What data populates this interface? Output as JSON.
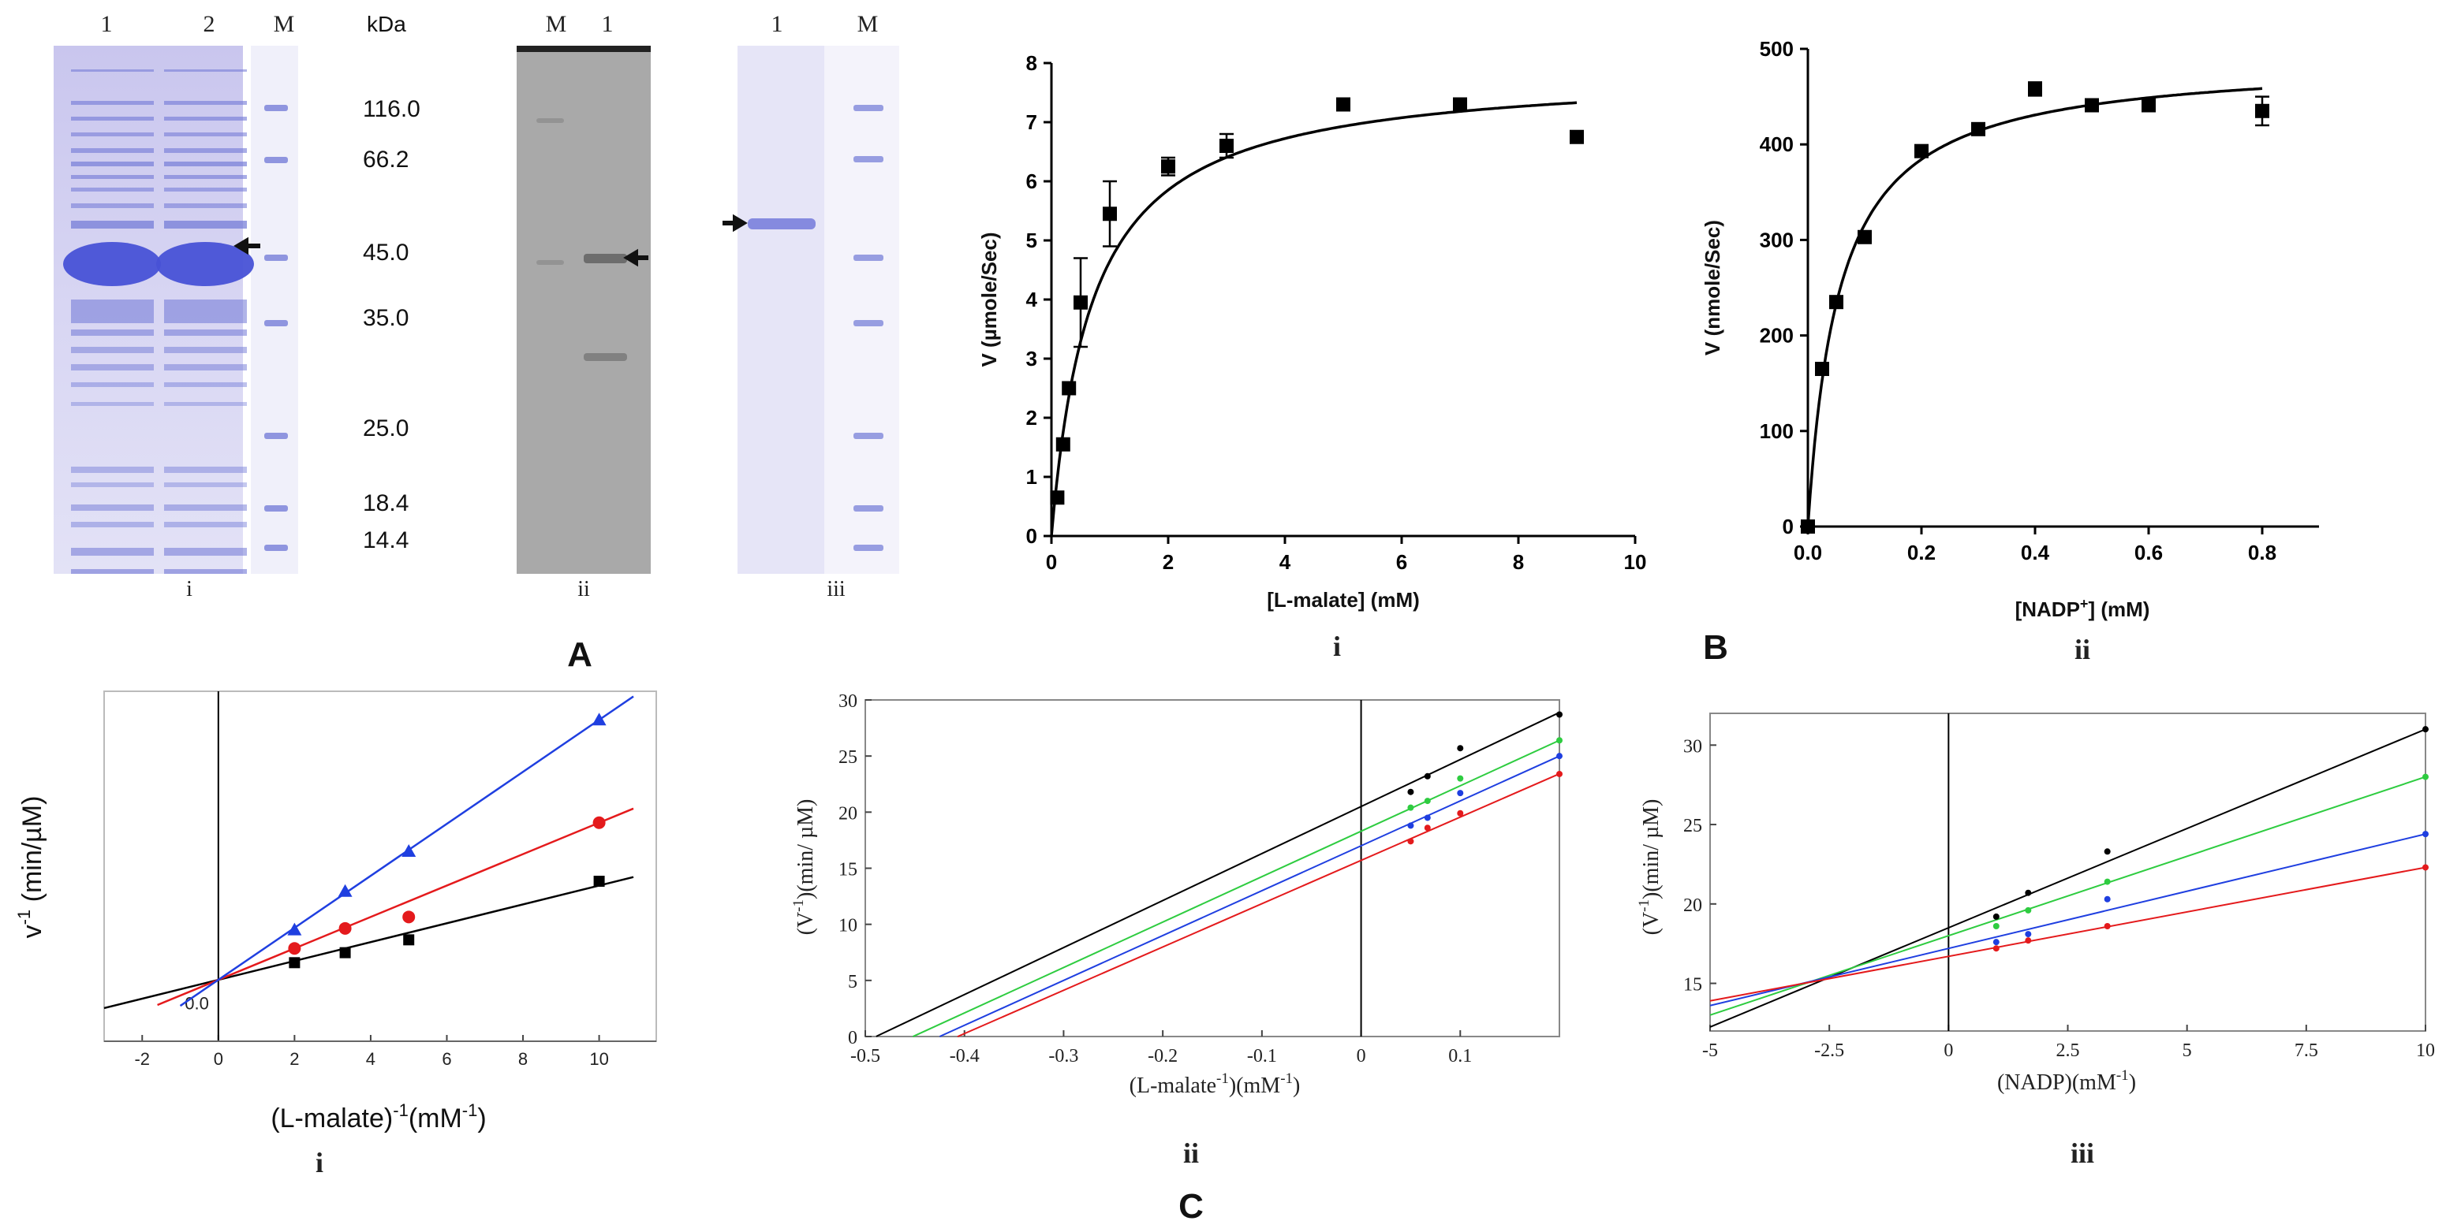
{
  "figure": {
    "panel_letters": {
      "A": "A",
      "B": "B",
      "C": "C"
    },
    "sub_labels": {
      "a_i": "i",
      "a_ii": "ii",
      "a_iii": "iii",
      "b_i": "i",
      "b_ii": "ii",
      "c_i": "i",
      "c_ii": "ii",
      "c_iii": "iii"
    }
  },
  "gels": {
    "gel1": {
      "lanes": [
        "1",
        "2",
        "M"
      ],
      "kda_label": "kDa",
      "markers": [
        "116.0",
        "66.2",
        "45.0",
        "35.0",
        "25.0",
        "18.4",
        "14.4"
      ]
    },
    "gel2": {
      "lanes": [
        "M",
        "1"
      ]
    },
    "gel3": {
      "lanes": [
        "1",
        "M"
      ]
    }
  },
  "colors": {
    "black": "#000000",
    "red": "#e41a1c",
    "blue": "#1f3fe0",
    "green": "#2ecc40",
    "gel_purple": "#6f77d6",
    "gel_gray": "#a8a8a8"
  },
  "chart_data": [
    {
      "id": "Bi",
      "type": "scatter",
      "xlabel": "[L-malate] (mM)",
      "ylabel": "V (µmole/Sec)",
      "xlim": [
        0,
        10
      ],
      "ylim": [
        0,
        8
      ],
      "xticks": [
        "0",
        "2",
        "4",
        "6",
        "8",
        "10"
      ],
      "yticks": [
        "0",
        "1",
        "2",
        "3",
        "4",
        "5",
        "6",
        "7",
        "8"
      ],
      "points": [
        {
          "x": 0.1,
          "y": 0.65,
          "err": 0
        },
        {
          "x": 0.2,
          "y": 1.55,
          "err": 0
        },
        {
          "x": 0.3,
          "y": 2.5,
          "err": 0
        },
        {
          "x": 0.5,
          "y": 3.95,
          "err": 0.75
        },
        {
          "x": 1.0,
          "y": 5.45,
          "err": 0.55
        },
        {
          "x": 2.0,
          "y": 6.25,
          "err": 0.15
        },
        {
          "x": 3.0,
          "y": 6.6,
          "err": 0.2
        },
        {
          "x": 5.0,
          "y": 7.3,
          "err": 0
        },
        {
          "x": 7.0,
          "y": 7.3,
          "err": 0.1
        },
        {
          "x": 9.0,
          "y": 6.75,
          "err": 0
        }
      ],
      "fit": {
        "vmax": 7.9,
        "km": 0.7,
        "xmax": 9.0
      }
    },
    {
      "id": "Bii",
      "type": "scatter",
      "xlabel_main": "[NADP",
      "xlabel_sup": "+",
      "xlabel_end": "] (mM)",
      "ylabel": "V (nmole/Sec)",
      "xlim": [
        0,
        0.9
      ],
      "ylim": [
        0,
        500
      ],
      "xticks": [
        "0.0",
        "0.2",
        "0.4",
        "0.6",
        "0.8"
      ],
      "yticks": [
        "0",
        "100",
        "200",
        "300",
        "400",
        "500"
      ],
      "points": [
        {
          "x": 0.0,
          "y": 0,
          "err": 0
        },
        {
          "x": 0.025,
          "y": 165,
          "err": 0
        },
        {
          "x": 0.05,
          "y": 235,
          "err": 0
        },
        {
          "x": 0.1,
          "y": 303,
          "err": 0
        },
        {
          "x": 0.2,
          "y": 393,
          "err": 0
        },
        {
          "x": 0.3,
          "y": 416,
          "err": 0
        },
        {
          "x": 0.4,
          "y": 458,
          "err": 7
        },
        {
          "x": 0.5,
          "y": 441,
          "err": 0
        },
        {
          "x": 0.6,
          "y": 441,
          "err": 0
        },
        {
          "x": 0.8,
          "y": 435,
          "err": 15
        }
      ],
      "fit": {
        "vmax": 490,
        "km": 0.055,
        "xmax": 0.8
      }
    },
    {
      "id": "Ci",
      "type": "line",
      "ylabel_main": "v",
      "ylabel_sup": "-1",
      "ylabel_end": " (min/µM)",
      "xlabel_main": "(L-malate)",
      "xlabel_sup": "-1",
      "xlabel_end": "(mM",
      "xlabel_sup2": "-1",
      "xlabel_end2": ")",
      "xlim": [
        -3,
        11.5
      ],
      "ylim": [
        -0.25,
        2.2
      ],
      "xticks": [
        "-2",
        "0",
        "2",
        "4",
        "6",
        "8",
        "10"
      ],
      "origin_label": "0.0",
      "series": [
        {
          "name": "black",
          "marker": "square",
          "color": "#000000",
          "points": [
            [
              2,
              0.3
            ],
            [
              3.33,
              0.37
            ],
            [
              5,
              0.46
            ],
            [
              10,
              0.87
            ]
          ],
          "line": {
            "slope": 0.066,
            "intercept": 0.18,
            "x0": -3,
            "x1": 10.9
          }
        },
        {
          "name": "red",
          "marker": "circle",
          "color": "#e41a1c",
          "points": [
            [
              2,
              0.4
            ],
            [
              3.33,
              0.54
            ],
            [
              5,
              0.62
            ],
            [
              10,
              1.28
            ]
          ],
          "line": {
            "slope": 0.11,
            "intercept": 0.18,
            "x0": -1.6,
            "x1": 10.9
          }
        },
        {
          "name": "blue",
          "marker": "triangle",
          "color": "#1f3fe0",
          "points": [
            [
              2,
              0.53
            ],
            [
              3.33,
              0.8
            ],
            [
              5,
              1.08
            ],
            [
              10,
              2.0
            ]
          ],
          "line": {
            "slope": 0.182,
            "intercept": 0.18,
            "x0": -1.0,
            "x1": 10.9
          }
        }
      ]
    },
    {
      "id": "Cii",
      "type": "line",
      "ylabel_main": "(V",
      "ylabel_sup": "-1",
      "ylabel_end": ")(min/ µM)",
      "xlabel_main": "(L-malate",
      "xlabel_sup": "-1",
      "xlabel_end": ")(mM",
      "xlabel_sup2": "-1",
      "xlabel_end2": ")",
      "xlim": [
        -0.5,
        0.2
      ],
      "ylim": [
        0,
        30
      ],
      "xticks": [
        "-0.5",
        "-0.4",
        "-0.3",
        "-0.2",
        "-0.1",
        "0",
        "0.1"
      ],
      "yticks": [
        "0",
        "5",
        "10",
        "15",
        "20",
        "25",
        "30"
      ],
      "series": [
        {
          "name": "black",
          "color": "#000000",
          "points": [
            [
              0.05,
              21.8
            ],
            [
              0.067,
              23.2
            ],
            [
              0.1,
              25.7
            ],
            [
              0.2,
              28.7
            ]
          ],
          "line": {
            "slope": 41.9,
            "intercept": 20.5,
            "x0": -0.489,
            "x1": 0.2
          }
        },
        {
          "name": "green",
          "color": "#2ecc40",
          "points": [
            [
              0.05,
              20.4
            ],
            [
              0.067,
              21.0
            ],
            [
              0.1,
              23.0
            ],
            [
              0.2,
              26.4
            ]
          ],
          "line": {
            "slope": 40.5,
            "intercept": 18.3,
            "x0": -0.452,
            "x1": 0.2
          }
        },
        {
          "name": "blue",
          "color": "#1f3fe0",
          "points": [
            [
              0.05,
              18.8
            ],
            [
              0.067,
              19.5
            ],
            [
              0.1,
              21.7
            ],
            [
              0.2,
              25.0
            ]
          ],
          "line": {
            "slope": 40.0,
            "intercept": 17.0,
            "x0": -0.425,
            "x1": 0.2
          }
        },
        {
          "name": "red",
          "color": "#e41a1c",
          "points": [
            [
              0.05,
              17.4
            ],
            [
              0.067,
              18.6
            ],
            [
              0.1,
              19.9
            ],
            [
              0.2,
              23.4
            ]
          ],
          "line": {
            "slope": 38.6,
            "intercept": 15.7,
            "x0": -0.407,
            "x1": 0.2
          }
        }
      ]
    },
    {
      "id": "Ciii",
      "type": "line",
      "ylabel_main": "(V",
      "ylabel_sup": "-1",
      "ylabel_end": ")(min/ µM)",
      "xlabel_main": "(NADP)(mM",
      "xlabel_sup": "-1",
      "xlabel_end": ")",
      "xlim": [
        -5,
        10
      ],
      "ylim": [
        12,
        32
      ],
      "xticks": [
        "-5",
        "-2.5",
        "0",
        "2.5",
        "5",
        "7.5",
        "10"
      ],
      "yticks": [
        "15",
        "20",
        "25",
        "30"
      ],
      "series": [
        {
          "name": "black",
          "color": "#000000",
          "points": [
            [
              1,
              19.2
            ],
            [
              1.67,
              20.7
            ],
            [
              3.33,
              23.3
            ],
            [
              10,
              31.0
            ]
          ],
          "line": {
            "slope": 1.25,
            "intercept": 18.5,
            "x0": -5,
            "x1": 10
          }
        },
        {
          "name": "green",
          "color": "#2ecc40",
          "points": [
            [
              1,
              18.6
            ],
            [
              1.67,
              19.6
            ],
            [
              3.33,
              21.4
            ],
            [
              10,
              28.0
            ]
          ],
          "line": {
            "slope": 1.0,
            "intercept": 18.0,
            "x0": -5,
            "x1": 10
          }
        },
        {
          "name": "blue",
          "color": "#1f3fe0",
          "points": [
            [
              1,
              17.6
            ],
            [
              1.67,
              18.1
            ],
            [
              3.33,
              20.3
            ],
            [
              10,
              24.4
            ]
          ],
          "line": {
            "slope": 0.72,
            "intercept": 17.2,
            "x0": -5,
            "x1": 10
          }
        },
        {
          "name": "red",
          "color": "#e41a1c",
          "points": [
            [
              1,
              17.2
            ],
            [
              1.67,
              17.7
            ],
            [
              3.33,
              18.6
            ],
            [
              10,
              22.3
            ]
          ],
          "line": {
            "slope": 0.56,
            "intercept": 16.7,
            "x0": -5,
            "x1": 10
          }
        }
      ]
    }
  ]
}
